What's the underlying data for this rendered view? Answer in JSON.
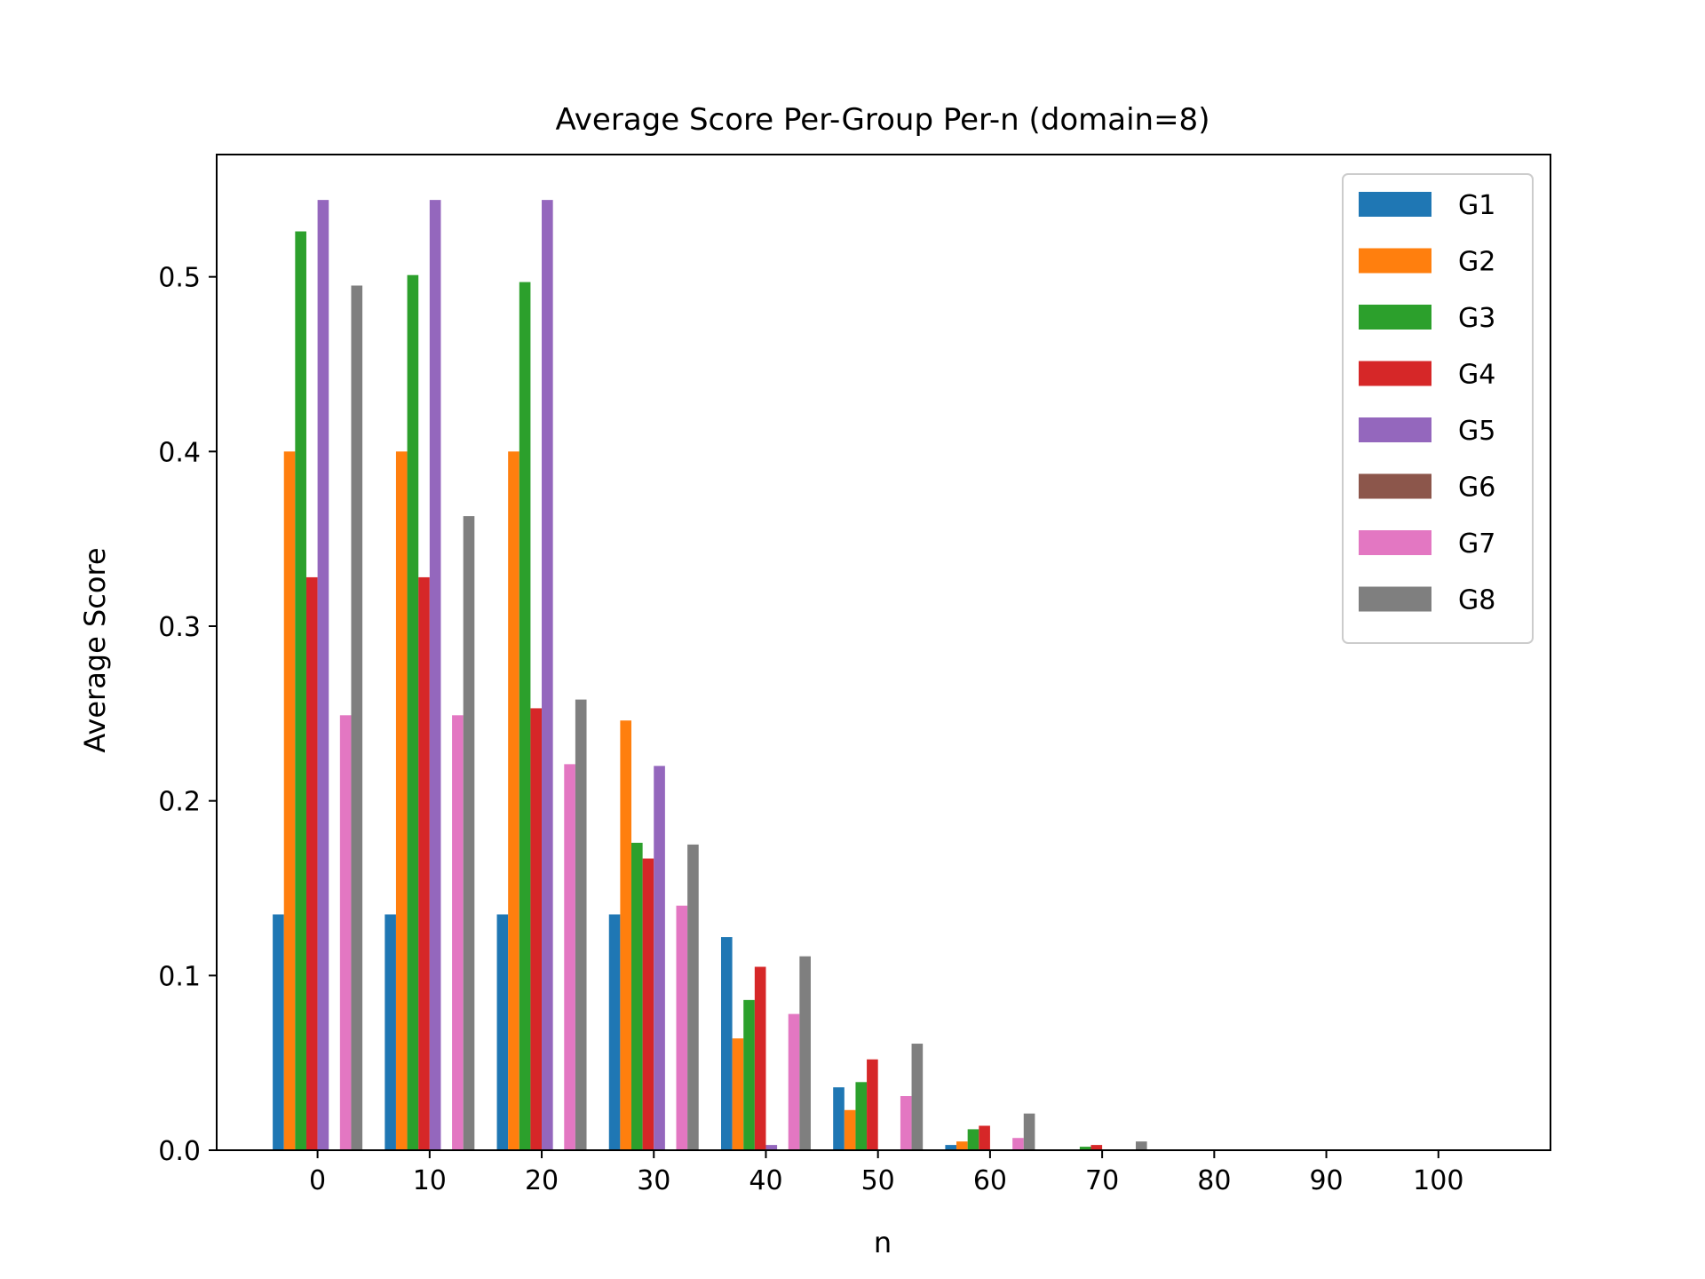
{
  "chart_data": {
    "type": "bar",
    "title": "Average Score Per-Group Per-n (domain=8)",
    "xlabel": "n",
    "ylabel": "Average Score",
    "categories": [
      "0",
      "10",
      "20",
      "30",
      "40",
      "50",
      "60",
      "70",
      "80",
      "90",
      "100"
    ],
    "x": [
      0,
      10,
      20,
      30,
      40,
      50,
      60,
      70,
      80,
      90,
      100
    ],
    "xlim": [
      -9,
      110
    ],
    "ylim": [
      0,
      0.57
    ],
    "yticks": [
      "0.0",
      "0.1",
      "0.2",
      "0.3",
      "0.4",
      "0.5"
    ],
    "grid": false,
    "legend_position": "top-right",
    "series": [
      {
        "name": "G1",
        "color": "#1f77b4",
        "values": [
          0.135,
          0.135,
          0.135,
          0.135,
          0.122,
          0.036,
          0.003,
          0,
          0,
          0,
          0
        ]
      },
      {
        "name": "G2",
        "color": "#ff7f0e",
        "values": [
          0.4,
          0.4,
          0.4,
          0.246,
          0.064,
          0.023,
          0.005,
          0,
          0,
          0,
          0
        ]
      },
      {
        "name": "G3",
        "color": "#2ca02c",
        "values": [
          0.526,
          0.501,
          0.497,
          0.176,
          0.086,
          0.039,
          0.012,
          0.002,
          0,
          0,
          0
        ]
      },
      {
        "name": "G4",
        "color": "#d62728",
        "values": [
          0.328,
          0.328,
          0.253,
          0.167,
          0.105,
          0.052,
          0.014,
          0.003,
          0,
          0,
          0
        ]
      },
      {
        "name": "G5",
        "color": "#9467bd",
        "values": [
          0.544,
          0.544,
          0.544,
          0.22,
          0.003,
          0,
          0,
          0,
          0,
          0,
          0
        ]
      },
      {
        "name": "G6",
        "color": "#8c564b",
        "values": [
          0,
          0,
          0,
          0,
          0,
          0,
          0,
          0,
          0,
          0,
          0
        ]
      },
      {
        "name": "G7",
        "color": "#e377c2",
        "values": [
          0.249,
          0.249,
          0.221,
          0.14,
          0.078,
          0.031,
          0.007,
          0,
          0,
          0,
          0
        ]
      },
      {
        "name": "G8",
        "color": "#7f7f7f",
        "values": [
          0.495,
          0.363,
          0.258,
          0.175,
          0.111,
          0.061,
          0.021,
          0.005,
          0,
          0,
          0
        ]
      }
    ]
  }
}
